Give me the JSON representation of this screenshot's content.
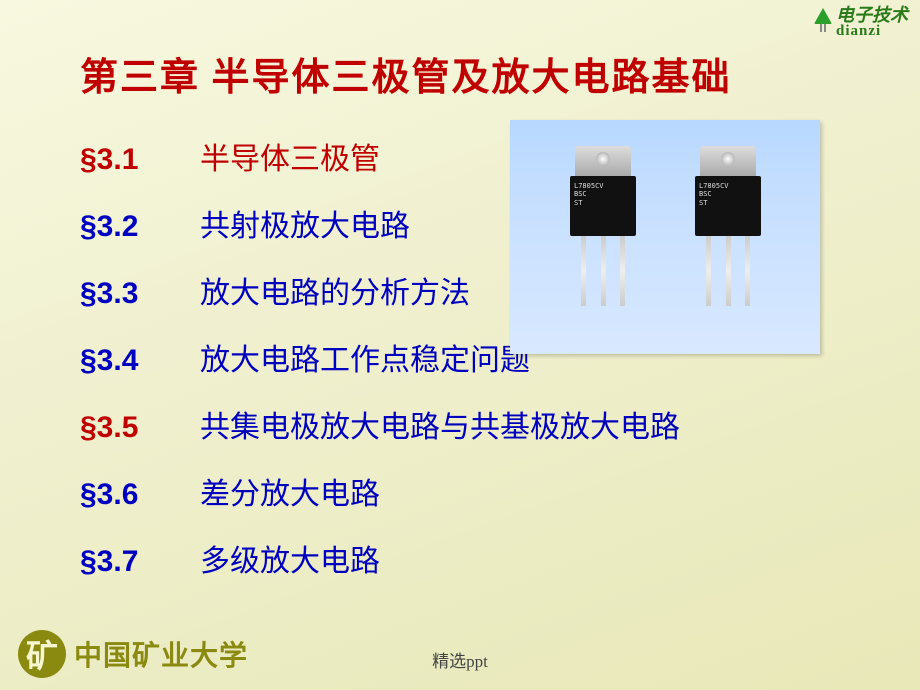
{
  "colors": {
    "title": "#c00000",
    "blue": "#0000c0",
    "bg_grad_from": "#f8f8e0",
    "bg_grad_to": "#e8e8b8",
    "olive": "#8a8a10",
    "green": "#2a7a1a"
  },
  "logo": {
    "cn": "电子技术",
    "py": "dianzi"
  },
  "title": "第三章 半导体三极管及放大电路基础",
  "sections": [
    {
      "num": "§3.1",
      "title": "半导体三极管",
      "num_color": "red",
      "title_first": true
    },
    {
      "num": "§3.2",
      "title": "共射极放大电路",
      "num_color": "blue",
      "title_first": false
    },
    {
      "num": "§3.3",
      "title": "放大电路的分析方法",
      "num_color": "blue",
      "title_first": false
    },
    {
      "num": "§3.4",
      "title": "放大电路工作点稳定问题",
      "num_color": "blue",
      "title_first": false
    },
    {
      "num": "§3.5",
      "title": "共集电极放大电路与共基极放大电路",
      "num_color": "red",
      "title_first": false
    },
    {
      "num": "§3.6",
      "title": "差分放大电路",
      "num_color": "blue",
      "title_first": false
    },
    {
      "num": "§3.7",
      "title": "多级放大电路",
      "num_color": "blue",
      "title_first": false
    }
  ],
  "photo": {
    "type": "infographic",
    "background_gradient": [
      "#b8d8ff",
      "#d8e8ff"
    ],
    "components": 2,
    "label_lines": [
      "L7805CV",
      "BSC",
      "ST"
    ],
    "body_color": "#111111",
    "tab_color": "#bbbbbb",
    "leg_color": "#dddddd"
  },
  "university": {
    "seal_char": "矿",
    "name": "中国矿业大学"
  },
  "footer": "精选ppt"
}
